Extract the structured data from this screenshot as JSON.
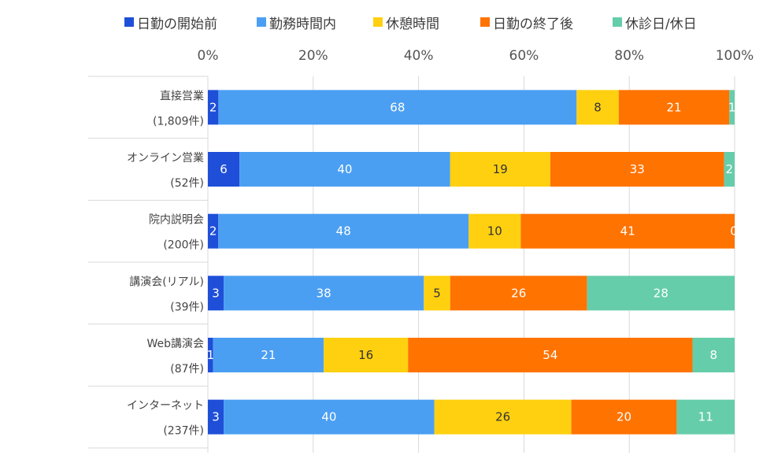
{
  "chart_data": {
    "type": "bar",
    "orientation": "horizontal",
    "stacked": true,
    "percent_stacked": true,
    "legend_position": "top",
    "grid": true,
    "xlim": [
      0,
      100
    ],
    "x_ticks": [
      "0%",
      "20%",
      "40%",
      "60%",
      "80%",
      "100%"
    ],
    "categories": [
      {
        "name": "直接営業",
        "count": "(1,809件)"
      },
      {
        "name": "オンライン営業",
        "count": "(52件)"
      },
      {
        "name": "院内説明会",
        "count": "(200件)"
      },
      {
        "name": "講演会(リアル)",
        "count": "(39件)"
      },
      {
        "name": "Web講演会",
        "count": "(87件)"
      },
      {
        "name": "インターネット",
        "count": "(237件)"
      }
    ],
    "series": [
      {
        "name": "日勤の開始前",
        "color": "#1f4fd8",
        "label_color": "#ffffff",
        "values": [
          2,
          6,
          2,
          3,
          1,
          3
        ]
      },
      {
        "name": "勤務時間内",
        "color": "#4b9ff2",
        "label_color": "#ffffff",
        "values": [
          68,
          40,
          48,
          38,
          21,
          40
        ]
      },
      {
        "name": "休憩時間",
        "color": "#ffd010",
        "label_color": "#333333",
        "values": [
          8,
          19,
          10,
          5,
          16,
          26
        ]
      },
      {
        "name": "日勤の終了後",
        "color": "#ff7300",
        "label_color": "#ffffff",
        "values": [
          21,
          33,
          41,
          26,
          54,
          20
        ]
      },
      {
        "name": "休診日/休日",
        "color": "#66cdaa",
        "label_color": "#ffffff",
        "values": [
          1,
          2,
          0,
          28,
          8,
          11
        ]
      }
    ]
  }
}
